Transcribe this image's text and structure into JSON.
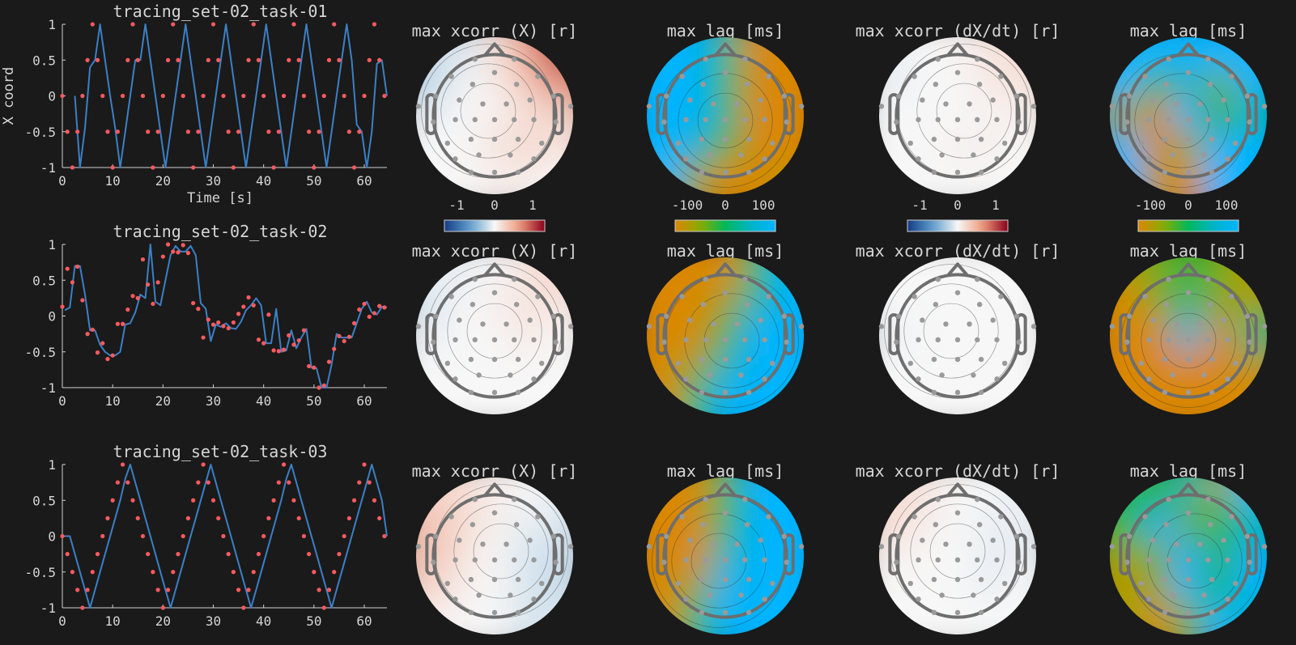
{
  "colors": {
    "background": "#1a1a1a",
    "trace": "#3b80c6",
    "target": "#ff5a5f",
    "axis": "#d0d0d0",
    "text": "#d6d6d6",
    "head_outline": "#6e6e6e",
    "electrode": "#9a9a9a",
    "contour": "#333333"
  },
  "colormaps": {
    "xcorr": {
      "stops": [
        [
          -1,
          "#163c86"
        ],
        [
          -0.5,
          "#5d9ccb"
        ],
        [
          0,
          "#f7f7f7"
        ],
        [
          0.5,
          "#ef9a7c"
        ],
        [
          1,
          "#8a0019"
        ]
      ]
    },
    "lag": {
      "stops": [
        [
          -100,
          "#db8700"
        ],
        [
          -50,
          "#8aab00"
        ],
        [
          0,
          "#00b85a"
        ],
        [
          50,
          "#00b4c8"
        ],
        [
          100,
          "#00b4ff"
        ]
      ]
    }
  },
  "chart_data": [
    {
      "type": "line",
      "title": "tracing_set-02_task-01",
      "xlabel": "Time [s]",
      "ylabel": "X coord",
      "xlim": [
        0,
        64.5
      ],
      "ylim": [
        -1,
        1
      ],
      "xticks": [
        "0",
        "10",
        "20",
        "30",
        "40",
        "50",
        "60"
      ],
      "yticks": [
        "-1",
        "-0.5",
        "0",
        "0.5",
        "1"
      ],
      "grid": false,
      "x": [
        0,
        1,
        2,
        3,
        4,
        5,
        6,
        7,
        8,
        9,
        10,
        11,
        12,
        13,
        14,
        15,
        16,
        17,
        18,
        19,
        20,
        21,
        22,
        23,
        24,
        25,
        26,
        27,
        28,
        29,
        30,
        31,
        32,
        33,
        34,
        35,
        36,
        37,
        38,
        39,
        40,
        41,
        42,
        43,
        44,
        45,
        46,
        47,
        48,
        49,
        50,
        51,
        52,
        53,
        54,
        55,
        56,
        57,
        58,
        59,
        60,
        61,
        62,
        63,
        64
      ],
      "targets": [
        0,
        -0.5,
        -1,
        -0.5,
        0,
        0.5,
        1,
        0.5,
        0,
        -0.5,
        -1,
        -0.5,
        0,
        0.5,
        1,
        0.5,
        0,
        -0.5,
        -1,
        -0.5,
        0,
        0.5,
        1,
        0.5,
        0,
        -0.5,
        -1,
        -0.5,
        0,
        0.5,
        1,
        0.5,
        0,
        -0.5,
        -1,
        -0.5,
        0,
        0.5,
        1,
        0.5,
        0,
        -0.5,
        -1,
        -0.5,
        0,
        0.5,
        1,
        0.5,
        0,
        -0.5,
        -1,
        -0.5,
        0,
        0.5,
        1,
        0.5,
        0,
        -0.5,
        -1,
        -0.5,
        0,
        0.5,
        1,
        0.5,
        0
      ],
      "trace": [
        null,
        null,
        0,
        -1,
        -0.45,
        0.4,
        0.5,
        1,
        0.5,
        0,
        -0.45,
        -1,
        -0.5,
        0,
        0.5,
        0.5,
        1,
        0.5,
        0,
        -0.5,
        -1,
        -0.5,
        0,
        0.5,
        1,
        0.5,
        0,
        -0.5,
        -1,
        -0.5,
        0,
        0.5,
        1,
        0.5,
        0,
        -0.5,
        -1,
        -0.5,
        0,
        0.5,
        1,
        0.5,
        0,
        -0.5,
        -1,
        -0.5,
        0,
        0.5,
        1,
        0.5,
        0,
        -0.5,
        -1,
        -0.5,
        0,
        0.5,
        1,
        0.5,
        -0.4,
        -0.5,
        -1,
        -0.5,
        0.45,
        0.5,
        0
      ]
    },
    {
      "type": "line",
      "title": "tracing_set-02_task-02",
      "xlim": [
        0,
        64.5
      ],
      "ylim": [
        -1,
        1
      ],
      "xticks": [
        "0",
        "10",
        "20",
        "30",
        "40",
        "50",
        "60"
      ],
      "yticks": [
        "-1",
        "-0.5",
        "0",
        "0.5",
        "1"
      ],
      "grid": false,
      "x": [
        0,
        1,
        2,
        3,
        4,
        5,
        6,
        7,
        8,
        9,
        10,
        11,
        12,
        13,
        14,
        15,
        16,
        17,
        18,
        19,
        20,
        21,
        22,
        23,
        24,
        25,
        26,
        27,
        28,
        29,
        30,
        31,
        32,
        33,
        34,
        35,
        36,
        37,
        38,
        39,
        40,
        41,
        42,
        43,
        44,
        45,
        46,
        47,
        48,
        49,
        50,
        51,
        52,
        53,
        54,
        55,
        56,
        57,
        58,
        59,
        60,
        61,
        62,
        63,
        64
      ],
      "targets": [
        0.13,
        0.66,
        0.47,
        0.69,
        0.22,
        -0.25,
        -0.19,
        -0.51,
        -0.38,
        -0.6,
        -0.55,
        -0.11,
        -0.11,
        0.09,
        0.28,
        0.25,
        0.79,
        0.44,
        0.17,
        0.47,
        0.83,
        1,
        0.9,
        0.89,
        0.99,
        0.88,
        0.18,
        0.1,
        -0.3,
        -0.05,
        -0.12,
        -0.09,
        -0.14,
        -0.17,
        -0.09,
        0.03,
        0.13,
        0.26,
        0.15,
        -0.33,
        -0.38,
        0.02,
        -0.48,
        -0.49,
        -0.47,
        -0.27,
        -0.4,
        -0.34,
        -0.2,
        -0.7,
        -0.72,
        -1,
        -0.97,
        -0.64,
        -0.46,
        -0.28,
        -0.35,
        -0.29,
        -0.1,
        0.09,
        0.17,
        -0.01,
        0.04,
        0.14,
        0.12
      ],
      "trace": [
        0.08,
        0.12,
        0.7,
        0.7,
        0.3,
        -0.2,
        -0.2,
        -0.4,
        -0.5,
        -0.55,
        -0.55,
        -0.5,
        -0.12,
        -0.1,
        0.05,
        0.3,
        0.25,
        1,
        0.2,
        0.15,
        0.5,
        0.85,
        0.98,
        0.9,
        0.9,
        0.98,
        0.85,
        0.18,
        0.1,
        -0.35,
        -0.12,
        -0.15,
        -0.1,
        -0.17,
        -0.18,
        -0.08,
        0.08,
        0.15,
        0.25,
        0.15,
        -0.38,
        -0.38,
        0.1,
        -0.5,
        -0.48,
        -0.2,
        -0.45,
        -0.3,
        -0.18,
        -0.72,
        -0.73,
        -1,
        -1,
        -0.68,
        -0.25,
        -0.3,
        -0.3,
        -0.3,
        -0.1,
        0.1,
        0.2,
        0.05,
        0.02,
        0.13,
        0.12
      ]
    },
    {
      "type": "line",
      "title": "tracing_set-02_task-03",
      "xlim": [
        0,
        64.5
      ],
      "ylim": [
        -1,
        1
      ],
      "xticks": [
        "0",
        "10",
        "20",
        "30",
        "40",
        "50",
        "60"
      ],
      "yticks": [
        "-1",
        "-0.5",
        "0",
        "0.5",
        "1"
      ],
      "grid": false,
      "x": [
        0,
        1,
        2,
        3,
        4,
        5,
        6,
        7,
        8,
        9,
        10,
        11,
        12,
        13,
        14,
        15,
        16,
        17,
        18,
        19,
        20,
        21,
        22,
        23,
        24,
        25,
        26,
        27,
        28,
        29,
        30,
        31,
        32,
        33,
        34,
        35,
        36,
        37,
        38,
        39,
        40,
        41,
        42,
        43,
        44,
        45,
        46,
        47,
        48,
        49,
        50,
        51,
        52,
        53,
        54,
        55,
        56,
        57,
        58,
        59,
        60,
        61,
        62,
        63,
        64
      ],
      "targets": [
        0,
        -0.25,
        -0.5,
        -0.75,
        -1,
        -0.75,
        -0.5,
        -0.25,
        0,
        0.25,
        0.5,
        0.75,
        1,
        0.75,
        0.5,
        0.25,
        0,
        -0.25,
        -0.5,
        -0.75,
        -1,
        -0.75,
        -0.5,
        -0.25,
        0,
        0.25,
        0.5,
        0.75,
        1,
        0.75,
        0.5,
        0.25,
        0,
        -0.25,
        -0.5,
        -0.75,
        -1,
        -0.75,
        -0.5,
        -0.25,
        0,
        0.25,
        0.5,
        0.75,
        1,
        0.75,
        0.5,
        0.25,
        0,
        -0.25,
        -0.5,
        -0.75,
        -1,
        -0.75,
        -0.5,
        -0.25,
        0,
        0.25,
        0.5,
        0.75,
        1,
        0.75,
        0.5,
        0.25,
        0
      ],
      "trace": [
        0,
        0,
        -0.25,
        -0.5,
        -0.75,
        -1,
        -0.75,
        -0.5,
        -0.25,
        0,
        0.25,
        0.5,
        0.8,
        1,
        0.75,
        0.5,
        0.25,
        0,
        -0.25,
        -0.5,
        -0.75,
        -1,
        -0.75,
        -0.5,
        -0.25,
        0,
        0.25,
        0.5,
        0.75,
        1,
        0.75,
        0.5,
        0.25,
        0,
        -0.25,
        -0.5,
        -0.75,
        -1,
        -0.75,
        -0.5,
        -0.25,
        0,
        0.25,
        0.5,
        0.8,
        1,
        0.75,
        0.5,
        0.25,
        0,
        -0.25,
        -0.5,
        -0.75,
        -1,
        -0.75,
        -0.5,
        -0.25,
        0,
        0.25,
        0.5,
        0.75,
        1,
        0.75,
        0.5,
        0
      ]
    },
    {
      "type": "heatmap",
      "title": "max xcorr (X) [r]",
      "colormap": "xcorr",
      "clim": [
        -1,
        1
      ],
      "colorbar_ticks": [
        "-1",
        "0",
        "1"
      ],
      "values": [
        [
          -0.15,
          -0.1,
          0.1,
          0.45,
          0.8
        ],
        [
          -0.2,
          0,
          0.05,
          0.25,
          0.55
        ],
        [
          -0.05,
          0,
          0.05,
          0.1,
          0.2
        ],
        [
          0,
          0,
          0.1,
          0.2,
          0.1
        ],
        [
          0,
          0,
          0.05,
          0.05,
          0
        ]
      ]
    },
    {
      "type": "heatmap",
      "title": "max lag [ms]",
      "colormap": "lag",
      "clim": [
        -100,
        100
      ],
      "colorbar_ticks": [
        "-100",
        "0",
        "100"
      ],
      "colorbar_direction": "reversed",
      "values": [
        [
          100,
          100,
          20,
          -100,
          -100
        ],
        [
          100,
          100,
          0,
          -100,
          -100
        ],
        [
          100,
          100,
          20,
          -100,
          -100
        ],
        [
          100,
          60,
          -30,
          -100,
          -100
        ],
        [
          100,
          -60,
          -100,
          -100,
          -80
        ]
      ]
    },
    {
      "type": "heatmap",
      "title": "max xcorr (dX/dt) [r]",
      "colormap": "xcorr",
      "clim": [
        -1,
        1
      ],
      "colorbar_ticks": [
        "-1",
        "0",
        "1"
      ],
      "values": [
        [
          -0.05,
          0,
          0.02,
          0.1,
          0.15
        ],
        [
          -0.05,
          0,
          0,
          0.08,
          0.1
        ],
        [
          0,
          0,
          0,
          0.02,
          0.05
        ],
        [
          0,
          0,
          0.05,
          0.05,
          0
        ],
        [
          0,
          0,
          0,
          0,
          0
        ]
      ]
    },
    {
      "type": "heatmap",
      "title": "max lag [ms]",
      "colormap": "lag",
      "clim": [
        -100,
        100
      ],
      "colorbar_ticks": [
        "-100",
        "0",
        "100"
      ],
      "values": [
        [
          100,
          100,
          100,
          100,
          100
        ],
        [
          100,
          -30,
          60,
          -40,
          100
        ],
        [
          -60,
          -100,
          100,
          -20,
          40
        ],
        [
          100,
          -100,
          -60,
          100,
          100
        ],
        [
          100,
          -80,
          -100,
          100,
          100
        ]
      ]
    },
    {
      "type": "heatmap",
      "title": "max xcorr (X) [r]",
      "colormap": "xcorr",
      "clim": [
        -1,
        1
      ],
      "values": [
        [
          -0.05,
          -0.05,
          0,
          0.1,
          0.2
        ],
        [
          -0.1,
          0,
          0.05,
          0.1,
          0.1
        ],
        [
          -0.05,
          0,
          0,
          0.1,
          0
        ],
        [
          0,
          0,
          0,
          0,
          0
        ],
        [
          0,
          0,
          0,
          0,
          0
        ]
      ]
    },
    {
      "type": "heatmap",
      "title": "max lag [ms]",
      "colormap": "lag",
      "clim": [
        -100,
        100
      ],
      "values": [
        [
          -100,
          -100,
          -100,
          0,
          100
        ],
        [
          -100,
          -100,
          -60,
          40,
          100
        ],
        [
          -100,
          -100,
          -20,
          100,
          100
        ],
        [
          -100,
          -60,
          40,
          100,
          100
        ],
        [
          -100,
          0,
          100,
          100,
          100
        ]
      ]
    },
    {
      "type": "heatmap",
      "title": "max xcorr (dX/dt) [r]",
      "colormap": "xcorr",
      "clim": [
        -1,
        1
      ],
      "values": [
        [
          0,
          0,
          0,
          0,
          0
        ],
        [
          0,
          0,
          0,
          0,
          0
        ],
        [
          -0.05,
          0,
          0,
          0,
          0
        ],
        [
          0,
          0,
          0,
          0,
          0
        ],
        [
          0,
          0,
          0,
          0,
          0
        ]
      ]
    },
    {
      "type": "heatmap",
      "title": "max lag [ms]",
      "colormap": "lag",
      "clim": [
        -100,
        100
      ],
      "values": [
        [
          -80,
          -40,
          -20,
          -40,
          -80
        ],
        [
          -100,
          -60,
          20,
          -60,
          -60
        ],
        [
          -100,
          -100,
          80,
          -100,
          20
        ],
        [
          -100,
          -100,
          -100,
          -100,
          -80
        ],
        [
          -100,
          -100,
          -100,
          -100,
          -100
        ]
      ]
    },
    {
      "type": "heatmap",
      "title": "max xcorr (X) [r]",
      "colormap": "xcorr",
      "clim": [
        -1,
        1
      ],
      "values": [
        [
          0.2,
          0.15,
          0.05,
          0,
          -0.05
        ],
        [
          0.3,
          0.15,
          0.05,
          -0.05,
          -0.1
        ],
        [
          0.3,
          0.1,
          0,
          -0.1,
          -0.15
        ],
        [
          0.2,
          0.05,
          0,
          -0.1,
          -0.15
        ],
        [
          0.05,
          0,
          0,
          -0.1,
          -0.1
        ]
      ]
    },
    {
      "type": "heatmap",
      "title": "max lag [ms]",
      "colormap": "lag",
      "clim": [
        -100,
        100
      ],
      "values": [
        [
          -100,
          -100,
          -20,
          100,
          100
        ],
        [
          -100,
          -100,
          0,
          100,
          100
        ],
        [
          -100,
          -100,
          40,
          100,
          100
        ],
        [
          -100,
          -60,
          80,
          100,
          100
        ],
        [
          -100,
          0,
          100,
          100,
          100
        ]
      ]
    },
    {
      "type": "heatmap",
      "title": "max xcorr (dX/dt) [r]",
      "colormap": "xcorr",
      "clim": [
        -1,
        1
      ],
      "values": [
        [
          0.15,
          0.1,
          0,
          0,
          -0.05
        ],
        [
          0.15,
          0.05,
          0,
          -0.05,
          -0.05
        ],
        [
          0.05,
          0,
          0,
          -0.05,
          -0.05
        ],
        [
          0,
          0,
          0,
          -0.05,
          0
        ],
        [
          0,
          0,
          0,
          0,
          0
        ]
      ]
    },
    {
      "type": "heatmap",
      "title": "max lag [ms]",
      "colormap": "lag",
      "clim": [
        -100,
        100
      ],
      "values": [
        [
          0,
          -20,
          40,
          -60,
          100
        ],
        [
          -20,
          100,
          -40,
          0,
          40
        ],
        [
          -60,
          -40,
          100,
          -20,
          100
        ],
        [
          -80,
          -60,
          100,
          0,
          100
        ],
        [
          -60,
          -100,
          -40,
          100,
          60
        ]
      ]
    }
  ]
}
